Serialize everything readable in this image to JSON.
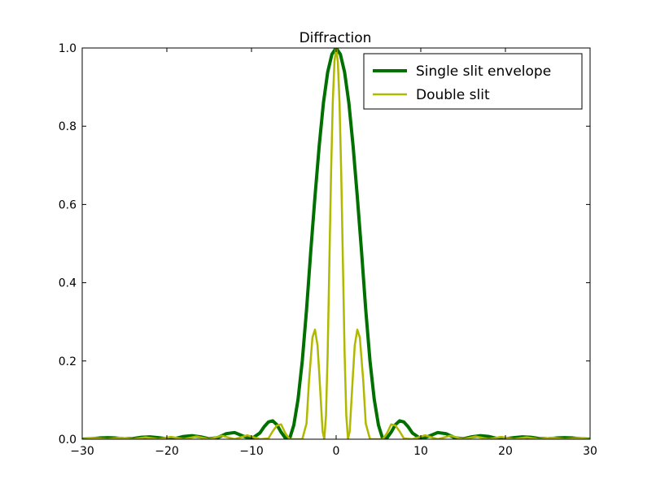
{
  "chart_data": {
    "type": "line",
    "title": "Diffraction",
    "xlabel": "",
    "ylabel": "",
    "xlim": [
      -30,
      30
    ],
    "ylim": [
      0,
      1.0
    ],
    "xticks": [
      -30,
      -20,
      -10,
      0,
      10,
      20,
      30
    ],
    "xtick_labels": [
      "−30",
      "−20",
      "−10",
      "0",
      "10",
      "20",
      "30"
    ],
    "yticks": [
      0,
      0.2,
      0.4,
      0.6,
      0.8,
      1.0
    ],
    "ytick_labels": [
      "0.0",
      "0.2",
      "0.4",
      "0.6",
      "0.8",
      "1.0"
    ],
    "grid": false,
    "legend_position": "top-right",
    "series": [
      {
        "name": "Single slit envelope",
        "color": "#007000",
        "style": "thick",
        "x": [
          -30,
          -29,
          -28,
          -27,
          -26,
          -25,
          -24,
          -23,
          -22,
          -21,
          -20,
          -19,
          -18,
          -17,
          -16,
          -15,
          -14,
          -13,
          -12,
          -11,
          -10,
          -9,
          -8.5,
          -8,
          -7.5,
          -7,
          -6.5,
          -6,
          -5.5,
          -5,
          -4.5,
          -4,
          -3.5,
          -3,
          -2.5,
          -2,
          -1.5,
          -1,
          -0.5,
          0,
          0.5,
          1,
          1.5,
          2,
          2.5,
          3,
          3.5,
          4,
          4.5,
          5,
          5.5,
          6,
          6.5,
          7,
          7.5,
          8,
          8.5,
          9,
          10,
          11,
          12,
          13,
          14,
          15,
          16,
          17,
          18,
          19,
          20,
          21,
          22,
          23,
          24,
          25,
          26,
          27,
          28,
          29,
          30
        ],
        "y": [
          0.0,
          0.001,
          0.003,
          0.004,
          0.003,
          0.001,
          0.0015,
          0.005,
          0.006,
          0.004,
          0.001,
          0.002,
          0.007,
          0.009,
          0.006,
          0.001,
          0.004,
          0.014,
          0.017,
          0.008,
          0.001,
          0.016,
          0.032,
          0.044,
          0.047,
          0.037,
          0.018,
          0.003,
          0.001,
          0.036,
          0.102,
          0.2,
          0.33,
          0.48,
          0.62,
          0.75,
          0.86,
          0.938,
          0.984,
          1.0,
          0.984,
          0.938,
          0.86,
          0.75,
          0.62,
          0.48,
          0.33,
          0.2,
          0.102,
          0.036,
          0.001,
          0.003,
          0.018,
          0.037,
          0.047,
          0.044,
          0.032,
          0.016,
          0.001,
          0.008,
          0.017,
          0.014,
          0.004,
          0.001,
          0.006,
          0.009,
          0.007,
          0.002,
          0.001,
          0.004,
          0.006,
          0.005,
          0.0015,
          0.001,
          0.003,
          0.004,
          0.003,
          0.001,
          0.0
        ]
      },
      {
        "name": "Double slit",
        "color": "#b0b800",
        "style": "thin",
        "x": [
          -30,
          -28.5,
          -27,
          -25.5,
          -24,
          -22.5,
          -21,
          -19.5,
          -18,
          -16.5,
          -15,
          -13.5,
          -12,
          -10.5,
          -9,
          -8,
          -7.5,
          -7,
          -6.5,
          -6,
          -5.5,
          -5,
          -4.5,
          -4,
          -3.5,
          -3.2,
          -2.8,
          -2.5,
          -2.2,
          -2,
          -1.6,
          -1.4,
          -1.2,
          -1,
          -0.8,
          -0.6,
          -0.4,
          -0.2,
          0,
          0.2,
          0.4,
          0.6,
          0.8,
          1,
          1.2,
          1.4,
          1.6,
          2,
          2.2,
          2.5,
          2.8,
          3.2,
          3.5,
          4,
          4.5,
          5,
          5.5,
          6,
          6.5,
          7,
          7.5,
          8,
          9,
          10.5,
          12,
          13.5,
          15,
          16.5,
          18,
          19.5,
          21,
          22.5,
          24,
          25.5,
          27,
          28.5,
          30
        ],
        "y": [
          0.0,
          0.003,
          0.0,
          0.004,
          0.0,
          0.005,
          0.0,
          0.006,
          0.0,
          0.007,
          0.0,
          0.009,
          0.0,
          0.01,
          0.0,
          0.002,
          0.02,
          0.035,
          0.038,
          0.015,
          0.0,
          0.0,
          0.0,
          0.0,
          0.04,
          0.15,
          0.26,
          0.28,
          0.24,
          0.17,
          0.02,
          0.0,
          0.06,
          0.22,
          0.45,
          0.68,
          0.86,
          0.965,
          1.0,
          0.965,
          0.86,
          0.68,
          0.45,
          0.22,
          0.06,
          0.0,
          0.02,
          0.17,
          0.24,
          0.28,
          0.26,
          0.15,
          0.04,
          0.0,
          0.0,
          0.0,
          0.0,
          0.015,
          0.038,
          0.035,
          0.02,
          0.002,
          0.0,
          0.01,
          0.0,
          0.009,
          0.0,
          0.007,
          0.0,
          0.006,
          0.0,
          0.005,
          0.0,
          0.004,
          0.0,
          0.003,
          0.0
        ]
      }
    ]
  }
}
